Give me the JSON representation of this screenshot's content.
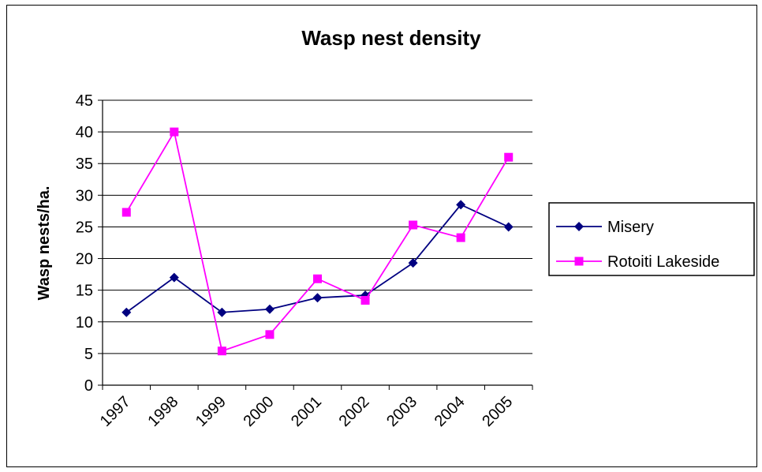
{
  "chart_data": {
    "type": "line",
    "title": "Wasp nest density",
    "xlabel": "",
    "ylabel": "Wasp nests/ha.",
    "categories": [
      "1997",
      "1998",
      "1999",
      "2000",
      "2001",
      "2002",
      "2003",
      "2004",
      "2005"
    ],
    "ylim": [
      0,
      45
    ],
    "yticks": [
      "0",
      "5",
      "10",
      "15",
      "20",
      "25",
      "30",
      "35",
      "40",
      "45"
    ],
    "grid": true,
    "legend_position": "right",
    "series": [
      {
        "name": "Misery",
        "color": "#000080",
        "marker": "diamond",
        "values": [
          11.5,
          17,
          11.5,
          12,
          13.8,
          14.2,
          19.3,
          28.5,
          25
        ]
      },
      {
        "name": "Rotoiti Lakeside",
        "color": "#ff00ff",
        "marker": "square",
        "values": [
          27.3,
          40,
          5.4,
          8,
          16.8,
          13.4,
          25.3,
          23.3,
          36
        ]
      }
    ]
  }
}
